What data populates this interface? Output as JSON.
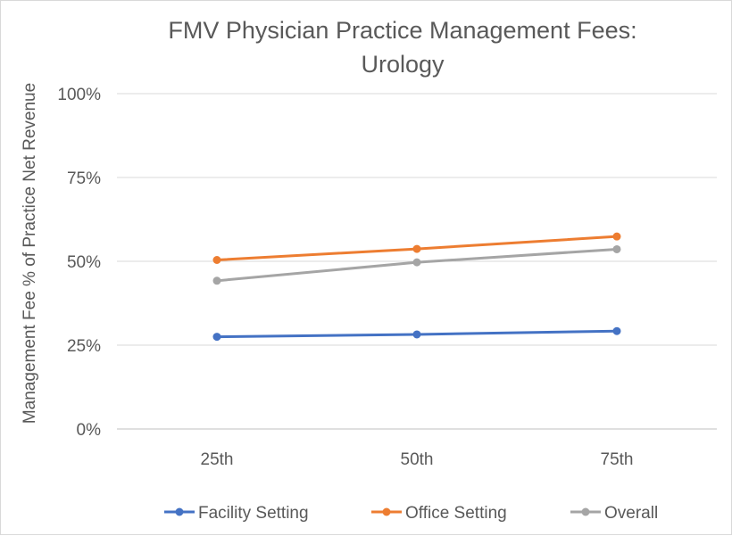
{
  "chart_data": {
    "type": "line",
    "title_lines": [
      "FMV Physician Practice Management Fees:",
      "Urology"
    ],
    "xlabel": "",
    "ylabel": "Management Fee % of Practice Net Revenue",
    "categories": [
      "25th",
      "50th",
      "75th"
    ],
    "yticks": [
      "0%",
      "25%",
      "50%",
      "75%",
      "100%"
    ],
    "ylim": [
      0,
      100
    ],
    "grid": true,
    "legend_position": "bottom",
    "series": [
      {
        "name": "Facility Setting",
        "color": "#4472C4",
        "values": [
          27.5,
          28.2,
          29.2
        ]
      },
      {
        "name": "Office Setting",
        "color": "#ED7D31",
        "values": [
          50.4,
          53.7,
          57.4
        ]
      },
      {
        "name": "Overall",
        "color": "#A5A5A5",
        "values": [
          44.2,
          49.7,
          53.6
        ]
      }
    ]
  }
}
